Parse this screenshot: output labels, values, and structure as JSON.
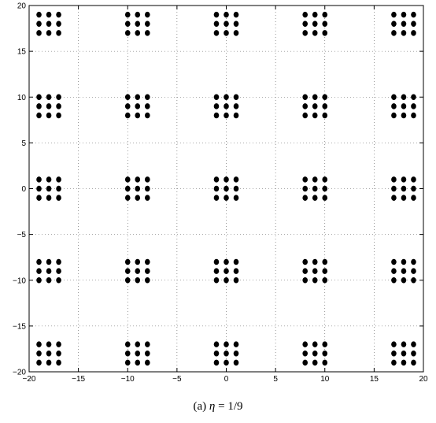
{
  "caption": {
    "prefix": "(a)",
    "symbol": "η",
    "formula": " = 1/9"
  },
  "chart_data": {
    "type": "scatter",
    "title": "",
    "xlabel": "",
    "ylabel": "",
    "xlim": [
      -20,
      20
    ],
    "ylim": [
      -20,
      20
    ],
    "xticks": [
      -20,
      -15,
      -10,
      -5,
      0,
      5,
      10,
      15,
      20
    ],
    "yticks": [
      -20,
      -15,
      -10,
      -5,
      0,
      5,
      10,
      15,
      20
    ],
    "xtick_labels": [
      "−20",
      "−15",
      "−10",
      "−5",
      "0",
      "5",
      "10",
      "15",
      "20"
    ],
    "ytick_labels": [
      "−20",
      "−15",
      "−10",
      "−5",
      "0",
      "5",
      "10",
      "15",
      "20"
    ],
    "grid": true,
    "grid_style": "dotted",
    "marker_color": "#000000",
    "cluster_centers_x": [
      -18,
      -9,
      0,
      9,
      18
    ],
    "cluster_centers_y": [
      -18,
      -9,
      0,
      9,
      18
    ],
    "cluster_offsets": [
      -1,
      0,
      1
    ]
  }
}
